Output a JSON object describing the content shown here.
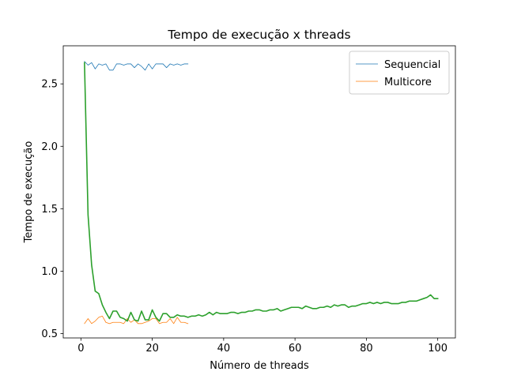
{
  "chart_data": {
    "type": "line",
    "title": "Tempo de execução x threads",
    "xlabel": "Número de threads",
    "ylabel": "Tempo de execução",
    "xlim": [
      -4.95,
      104.95
    ],
    "ylim": [
      0.465,
      2.805
    ],
    "xticks": [
      0,
      20,
      40,
      60,
      80,
      100
    ],
    "yticks": [
      0.5,
      1.0,
      1.5,
      2.0,
      2.5
    ],
    "ytick_labels": [
      "0.5",
      "1.0",
      "1.5",
      "2.0",
      "2.5"
    ],
    "legend_position": "upper right",
    "series": [
      {
        "name": "Sequencial",
        "color": "#1f77b4",
        "in_legend": true,
        "x": [
          1,
          2,
          3,
          4,
          5,
          6,
          7,
          8,
          9,
          10,
          11,
          12,
          13,
          14,
          15,
          16,
          17,
          18,
          19,
          20,
          21,
          22,
          23,
          24,
          25,
          26,
          27,
          28,
          29,
          30
        ],
        "y": [
          2.68,
          2.65,
          2.67,
          2.62,
          2.66,
          2.65,
          2.66,
          2.61,
          2.61,
          2.66,
          2.66,
          2.65,
          2.66,
          2.66,
          2.63,
          2.66,
          2.64,
          2.61,
          2.66,
          2.62,
          2.66,
          2.66,
          2.66,
          2.63,
          2.66,
          2.65,
          2.66,
          2.65,
          2.66,
          2.66
        ]
      },
      {
        "name": "Multicore",
        "color": "#ff7f0e",
        "in_legend": true,
        "x": [
          1,
          2,
          3,
          4,
          5,
          6,
          7,
          8,
          9,
          10,
          11,
          12,
          13,
          14,
          15,
          16,
          17,
          18,
          19,
          20,
          21,
          22,
          23,
          24,
          25,
          26,
          27,
          28,
          29,
          30
        ],
        "y": [
          0.58,
          0.62,
          0.58,
          0.6,
          0.63,
          0.64,
          0.59,
          0.58,
          0.59,
          0.59,
          0.59,
          0.58,
          0.62,
          0.59,
          0.61,
          0.58,
          0.58,
          0.59,
          0.6,
          0.62,
          0.62,
          0.58,
          0.59,
          0.59,
          0.62,
          0.58,
          0.63,
          0.59,
          0.59,
          0.58
        ]
      },
      {
        "name": "",
        "color": "#2ca02c",
        "in_legend": false,
        "x": [
          1,
          2,
          3,
          4,
          5,
          6,
          7,
          8,
          9,
          10,
          11,
          12,
          13,
          14,
          15,
          16,
          17,
          18,
          19,
          20,
          21,
          22,
          23,
          24,
          25,
          26,
          27,
          28,
          29,
          30,
          31,
          32,
          33,
          34,
          35,
          36,
          37,
          38,
          39,
          40,
          41,
          42,
          43,
          44,
          45,
          46,
          47,
          48,
          49,
          50,
          51,
          52,
          53,
          54,
          55,
          56,
          57,
          58,
          59,
          60,
          61,
          62,
          63,
          64,
          65,
          66,
          67,
          68,
          69,
          70,
          71,
          72,
          73,
          74,
          75,
          76,
          77,
          78,
          79,
          80,
          81,
          82,
          83,
          84,
          85,
          86,
          87,
          88,
          89,
          90,
          91,
          92,
          93,
          94,
          95,
          96,
          97,
          98,
          99,
          100
        ],
        "y": [
          2.67,
          1.45,
          1.05,
          0.84,
          0.82,
          0.73,
          0.67,
          0.62,
          0.68,
          0.68,
          0.63,
          0.62,
          0.6,
          0.67,
          0.61,
          0.6,
          0.68,
          0.61,
          0.61,
          0.69,
          0.63,
          0.6,
          0.66,
          0.66,
          0.63,
          0.63,
          0.65,
          0.64,
          0.64,
          0.63,
          0.64,
          0.64,
          0.65,
          0.64,
          0.65,
          0.67,
          0.65,
          0.67,
          0.66,
          0.66,
          0.66,
          0.67,
          0.67,
          0.66,
          0.67,
          0.67,
          0.68,
          0.68,
          0.69,
          0.69,
          0.68,
          0.68,
          0.69,
          0.69,
          0.7,
          0.68,
          0.69,
          0.7,
          0.71,
          0.71,
          0.71,
          0.7,
          0.72,
          0.71,
          0.7,
          0.7,
          0.71,
          0.71,
          0.72,
          0.71,
          0.73,
          0.72,
          0.73,
          0.73,
          0.71,
          0.72,
          0.72,
          0.73,
          0.74,
          0.74,
          0.75,
          0.74,
          0.75,
          0.74,
          0.75,
          0.75,
          0.74,
          0.74,
          0.74,
          0.75,
          0.75,
          0.76,
          0.76,
          0.76,
          0.77,
          0.78,
          0.79,
          0.81,
          0.78,
          0.78
        ]
      }
    ]
  }
}
